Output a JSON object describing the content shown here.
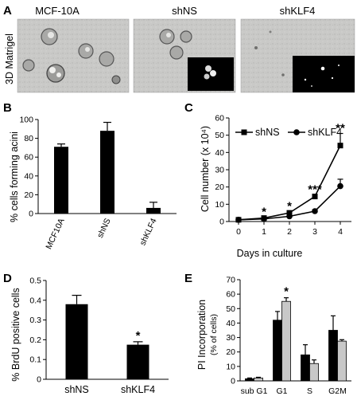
{
  "panel_a": {
    "label": "A",
    "side_label": "3D Matrigel",
    "images": [
      {
        "title": "MCF-10A",
        "inset": false
      },
      {
        "title": "shNS",
        "inset": true
      },
      {
        "title": "shKLF4",
        "inset": true
      }
    ]
  },
  "chart_data": [
    {
      "panel": "B",
      "type": "bar",
      "categories": [
        "MCF10A",
        "shNS",
        "shKLF4"
      ],
      "values": [
        71,
        88,
        6
      ],
      "errors": [
        3,
        9,
        6
      ],
      "ylabel": "% cells forming acini",
      "ylim": [
        0,
        100
      ],
      "yticks": [
        0,
        20,
        40,
        60,
        80,
        100
      ]
    },
    {
      "panel": "C",
      "type": "line",
      "x": [
        0,
        1,
        2,
        3,
        4
      ],
      "series": [
        {
          "name": "shNS",
          "marker": "square",
          "values": [
            1,
            2,
            5,
            14.5,
            44
          ],
          "errors": [
            0.3,
            0.5,
            0.8,
            1,
            7
          ]
        },
        {
          "name": "shKLF4",
          "marker": "circle",
          "values": [
            1,
            1.5,
            3,
            6,
            20.5
          ],
          "errors": [
            0.3,
            0.3,
            0.5,
            0.8,
            4
          ]
        }
      ],
      "xlabel": "Days in culture",
      "ylabel": "Cell number (x 10⁴)",
      "ylim": [
        0,
        60
      ],
      "yticks": [
        0,
        10,
        20,
        30,
        40,
        50,
        60
      ],
      "annotations": [
        {
          "x": 1,
          "text": "*"
        },
        {
          "x": 2,
          "text": "*"
        },
        {
          "x": 3,
          "text": "***"
        },
        {
          "x": 4,
          "text": "**"
        }
      ],
      "legend": "top"
    },
    {
      "panel": "D",
      "type": "bar",
      "categories": [
        "shNS",
        "shKLF4"
      ],
      "values": [
        0.38,
        0.175
      ],
      "errors": [
        0.045,
        0.015
      ],
      "ylabel": "% BrdU positive cells",
      "ylim": [
        0,
        0.5
      ],
      "yticks": [
        0,
        0.1,
        0.2,
        0.3,
        0.4,
        0.5
      ],
      "annotations": [
        {
          "category": "shKLF4",
          "text": "*"
        }
      ]
    },
    {
      "panel": "E",
      "type": "bar",
      "categories": [
        "sub G1",
        "G1",
        "S",
        "G2M"
      ],
      "series": [
        {
          "color": "#000000",
          "values": [
            1.5,
            42,
            18,
            35
          ],
          "errors": [
            0.5,
            6,
            7,
            10
          ]
        },
        {
          "color": "#c8c8c8",
          "values": [
            2,
            55,
            12,
            27.5
          ],
          "errors": [
            0.5,
            2.5,
            2.5,
            1
          ]
        }
      ],
      "ylabel": "PI Incorporation",
      "ylabel2": "(% of cells)",
      "ylim": [
        0,
        70
      ],
      "yticks": [
        0,
        10,
        20,
        30,
        40,
        50,
        60,
        70
      ],
      "annotations": [
        {
          "category": "G1",
          "text": "*"
        }
      ]
    }
  ]
}
